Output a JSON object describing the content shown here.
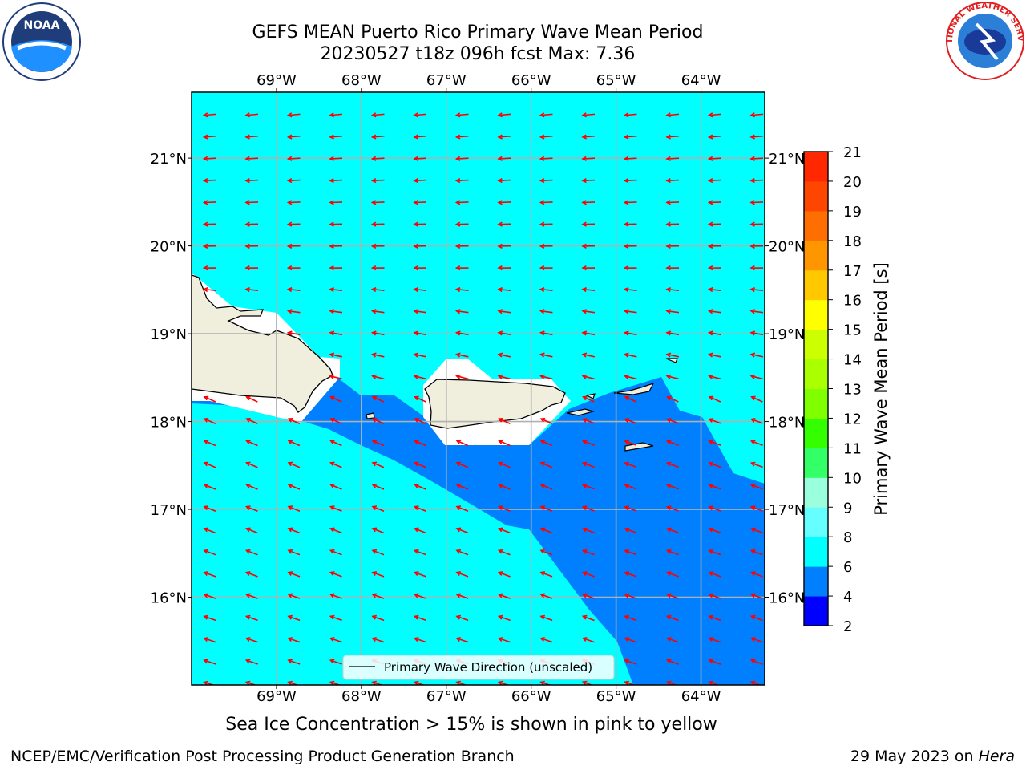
{
  "title": {
    "line1": "GEFS MEAN Puerto Rico Primary Wave Mean Period",
    "line2": "20230527 t18z 096h fcst   Max: 7.36"
  },
  "map": {
    "projection": "lat-lon",
    "lon_range": [
      -70.0,
      -63.25
    ],
    "lat_range": [
      15.0,
      21.75
    ],
    "lon_ticks": [
      {
        "value": -69,
        "label": "69°W"
      },
      {
        "value": -68,
        "label": "68°W"
      },
      {
        "value": -67,
        "label": "67°W"
      },
      {
        "value": -66,
        "label": "66°W"
      },
      {
        "value": -65,
        "label": "65°W"
      },
      {
        "value": -64,
        "label": "64°W"
      }
    ],
    "lat_ticks": [
      {
        "value": 21,
        "label": "21°N"
      },
      {
        "value": 20,
        "label": "20°N"
      },
      {
        "value": 19,
        "label": "19°N"
      },
      {
        "value": 18,
        "label": "18°N"
      },
      {
        "value": 17,
        "label": "17°N"
      },
      {
        "value": 16,
        "label": "16°N"
      }
    ],
    "grid": true,
    "legend_label": "Primary Wave Direction (unscaled)",
    "legend_placement": "bottom-center",
    "colors": {
      "ocean_6_8": "#00ffff",
      "ocean_4_6": "#0080ff",
      "land": "#f0eedc",
      "no_data": "#ffffff",
      "arrow": "#ff0000",
      "grid": "#b0b0b0"
    }
  },
  "colorbar": {
    "label": "Primary Wave Mean Period [s]",
    "ticks": [
      "2",
      "4",
      "6",
      "8",
      "9",
      "10",
      "11",
      "12",
      "13",
      "14",
      "15",
      "16",
      "17",
      "18",
      "19",
      "20",
      "21"
    ],
    "colors": [
      "#0000ff",
      "#0080ff",
      "#00ffff",
      "#66ffff",
      "#99ffdd",
      "#33ff66",
      "#33ff00",
      "#80ff00",
      "#aaff00",
      "#ccff00",
      "#ffff00",
      "#ffc800",
      "#ff9600",
      "#ff6e00",
      "#ff4600",
      "#ff2800",
      "#ff0000"
    ]
  },
  "caption": "Sea Ice Concentration > 15% is shown in pink to yellow",
  "footer": {
    "left": "NCEP/EMC/Verification Post Processing Product Generation Branch",
    "right_date": "29 May 2023 on ",
    "right_host": "Hera"
  },
  "logos": {
    "noaa_text": "NOAA",
    "nws_text": "NATIONAL WEATHER SERVICE"
  }
}
